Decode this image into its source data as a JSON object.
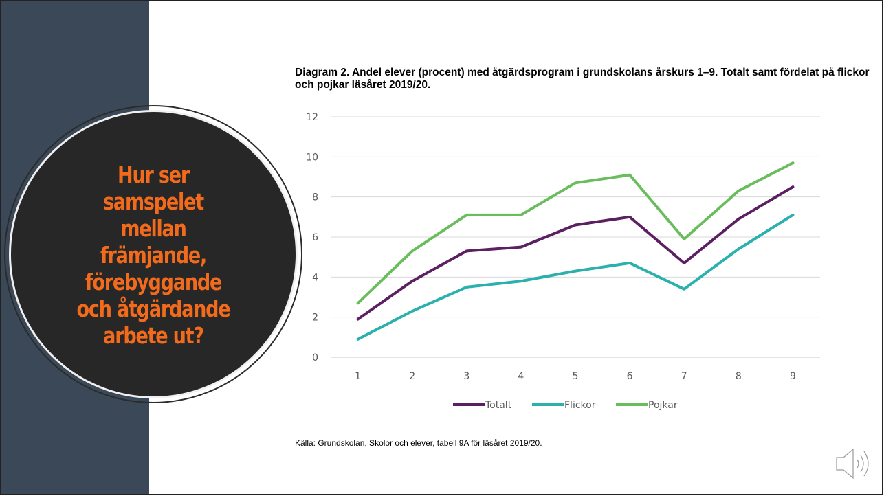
{
  "slide": {
    "question": "Hur ser\nsamspelet\nmellan\nfrämjande,\nförebyggande\noch åtgärdande\narbete ut?",
    "source_note": "Källa: Grundskolan, Skolor och elever, tabell 9A för läsåret 2019/20.",
    "speaker_icon": "speaker-icon",
    "colors": {
      "band": "#3a4857",
      "circle": "#272727",
      "question_text": "#f26b1d"
    }
  },
  "chart_data": {
    "type": "line",
    "title": "Diagram 2. Andel elever (procent) med åtgärdsprogram i grundskolans årskurs 1–9. Totalt samt fördelat på flickor och pojkar läsåret 2019/20.",
    "xlabel": "",
    "ylabel": "",
    "categories": [
      "1",
      "2",
      "3",
      "4",
      "5",
      "6",
      "7",
      "8",
      "9"
    ],
    "ylim": [
      0,
      12
    ],
    "yticks": [
      0,
      2,
      4,
      6,
      8,
      10,
      12
    ],
    "grid": true,
    "legend": "bottom",
    "series": [
      {
        "name": "Totalt",
        "color": "#5c1f62",
        "values": [
          1.9,
          3.8,
          5.3,
          5.5,
          6.6,
          7.0,
          4.7,
          6.9,
          8.5
        ]
      },
      {
        "name": "Flickor",
        "color": "#2ab0ad",
        "values": [
          0.9,
          2.3,
          3.5,
          3.8,
          4.3,
          4.7,
          3.4,
          5.4,
          7.1
        ]
      },
      {
        "name": "Pojkar",
        "color": "#6abd5d",
        "values": [
          2.7,
          5.3,
          7.1,
          7.1,
          8.7,
          9.1,
          5.9,
          8.3,
          9.7
        ]
      }
    ]
  }
}
